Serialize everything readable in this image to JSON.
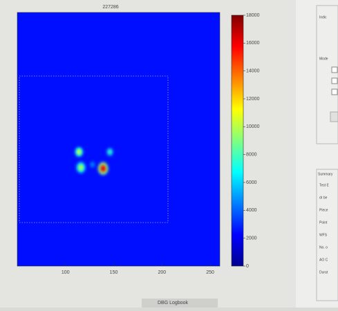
{
  "chart_data": {
    "type": "heatmap",
    "title": "227286",
    "colormap": "jet",
    "xlim": [
      50,
      260
    ],
    "xticks": [
      100,
      150,
      200,
      250
    ],
    "ylim": [
      0,
      260
    ],
    "clim": [
      0,
      18000
    ],
    "cticks": [
      0,
      2000,
      4000,
      6000,
      8000,
      10000,
      12000,
      14000,
      16000,
      18000
    ],
    "background_value": 2500,
    "spots": [
      {
        "x": 114,
        "y": 117,
        "value": 11000,
        "radius": 3
      },
      {
        "x": 116,
        "y": 101,
        "value": 10000,
        "radius": 3.5
      },
      {
        "x": 139,
        "y": 100,
        "value": 16000,
        "radius": 4
      },
      {
        "x": 146,
        "y": 117,
        "value": 8000,
        "radius": 2.5
      },
      {
        "x": 128,
        "y": 104,
        "value": 5000,
        "radius": 2
      }
    ]
  },
  "status_bar": {
    "text": "DBG Logbook"
  },
  "side_panel": {
    "top_labels": [
      "Indic",
      "Mode"
    ],
    "summary_title": "Summary",
    "summary_labels": [
      "Test E",
      "dr be",
      "Piece",
      "Point",
      "WFS",
      "No. o",
      "AO C",
      "Durat"
    ]
  }
}
